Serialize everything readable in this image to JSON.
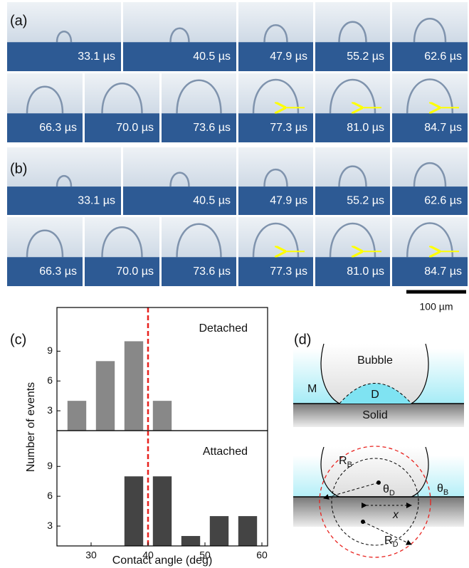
{
  "panels": {
    "a": {
      "label": "(a)",
      "row1": [
        "33.1 µs",
        "40.5 µs",
        "47.9 µs",
        "55.2 µs",
        "62.6 µs"
      ],
      "row2": [
        "66.3 µs",
        "70.0 µs",
        "73.6 µs",
        "77.3 µs",
        "81.0 µs",
        "84.7 µs"
      ]
    },
    "b": {
      "label": "(b)",
      "row1": [
        "33.1 µs",
        "40.5 µs",
        "47.9 µs",
        "55.2 µs",
        "62.6 µs"
      ],
      "row2": [
        "66.3 µs",
        "70.0 µs",
        "73.6 µs",
        "77.3 µs",
        "81.0 µs",
        "84.7 µs"
      ]
    },
    "scale_bar": "100 µm",
    "c": {
      "label": "(c)"
    },
    "d": {
      "label": "(d)",
      "bubble": "Bubble",
      "medium": "M",
      "droplet": "D",
      "solid": "Solid",
      "rb": {
        "main": "R",
        "sub": "B"
      },
      "rd": {
        "main": "R",
        "sub": "D"
      },
      "theta_d": {
        "main": "θ",
        "sub": "D"
      },
      "theta_b": {
        "main": "θ",
        "sub": "B"
      },
      "x": "x"
    }
  },
  "chart_data": [
    {
      "type": "histogram",
      "annotation": "Detached",
      "bins": [
        25,
        30,
        35,
        40,
        45
      ],
      "values": [
        4,
        8,
        10,
        4
      ],
      "color": "#888888",
      "ylim": [
        1,
        13.4
      ],
      "yticks": [
        3,
        6,
        9
      ],
      "xlim": [
        24,
        61
      ],
      "reference_line": 40,
      "reference_color": "#e8211d",
      "y_label": "Number of events"
    },
    {
      "type": "histogram",
      "annotation": "Attached",
      "bins": [
        35,
        40,
        45,
        50,
        55,
        60
      ],
      "values": [
        8,
        8,
        2,
        4,
        4
      ],
      "color": "#444444",
      "ylim": [
        1,
        12.6
      ],
      "yticks": [
        3,
        6,
        9
      ],
      "xlim": [
        24,
        61
      ],
      "xticks": [
        30,
        40,
        50,
        60
      ],
      "reference_line": 40,
      "reference_color": "#e8211d",
      "x_label": "Contact angle (deg)"
    }
  ]
}
